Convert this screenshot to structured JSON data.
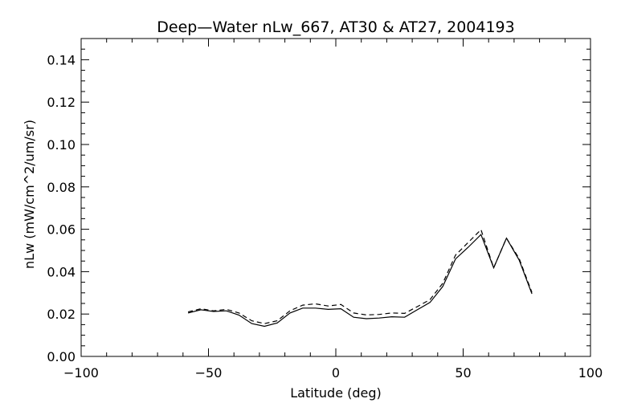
{
  "chart_data": {
    "type": "line",
    "title": "Deep—Water nLw_667, AT30 & AT27, 2004193",
    "xlabel": "Latitude (deg)",
    "ylabel": "nLw (mW/cm^2/um/sr)",
    "xlim": [
      -100,
      100
    ],
    "ylim": [
      0.0,
      0.15
    ],
    "xticks": [
      -100,
      -50,
      0,
      50,
      100
    ],
    "xtick_labels": [
      "−100",
      "−50",
      "0",
      "50",
      "100"
    ],
    "yticks": [
      0.0,
      0.02,
      0.04,
      0.06,
      0.08,
      0.1,
      0.12,
      0.14
    ],
    "ytick_labels": [
      "0.00",
      "0.02",
      "0.04",
      "0.06",
      "0.08",
      "0.10",
      "0.12",
      "0.14"
    ],
    "grid": false,
    "series": [
      {
        "style": "solid",
        "color": "#000000",
        "x": [
          -58,
          -53,
          -48,
          -43,
          -38,
          -33,
          -28,
          -23,
          -18,
          -13,
          -8,
          -3,
          2,
          7,
          12,
          17,
          22,
          27,
          32,
          37,
          42,
          47,
          52,
          57,
          62,
          67,
          72,
          77
        ],
        "y": [
          0.0205,
          0.022,
          0.0212,
          0.0215,
          0.0195,
          0.0155,
          0.0142,
          0.0158,
          0.0205,
          0.0228,
          0.0228,
          0.0222,
          0.0225,
          0.0185,
          0.0178,
          0.0181,
          0.0187,
          0.0185,
          0.022,
          0.0255,
          0.033,
          0.046,
          0.0515,
          0.0575,
          0.0418,
          0.0558,
          0.0455,
          0.0295
        ]
      },
      {
        "style": "dashed",
        "color": "#000000",
        "x": [
          -58,
          -53,
          -48,
          -43,
          -38,
          -33,
          -28,
          -23,
          -18,
          -13,
          -8,
          -3,
          2,
          7,
          12,
          17,
          22,
          27,
          32,
          37,
          42,
          47,
          52,
          57,
          62,
          67,
          72,
          77
        ],
        "y": [
          0.021,
          0.0225,
          0.0215,
          0.0222,
          0.0205,
          0.0168,
          0.0155,
          0.0168,
          0.0215,
          0.0242,
          0.0248,
          0.0238,
          0.0245,
          0.0205,
          0.0196,
          0.0198,
          0.0205,
          0.0203,
          0.0235,
          0.0268,
          0.0345,
          0.0478,
          0.0538,
          0.0598,
          0.0418,
          0.0558,
          0.0462,
          0.0302
        ]
      }
    ]
  }
}
